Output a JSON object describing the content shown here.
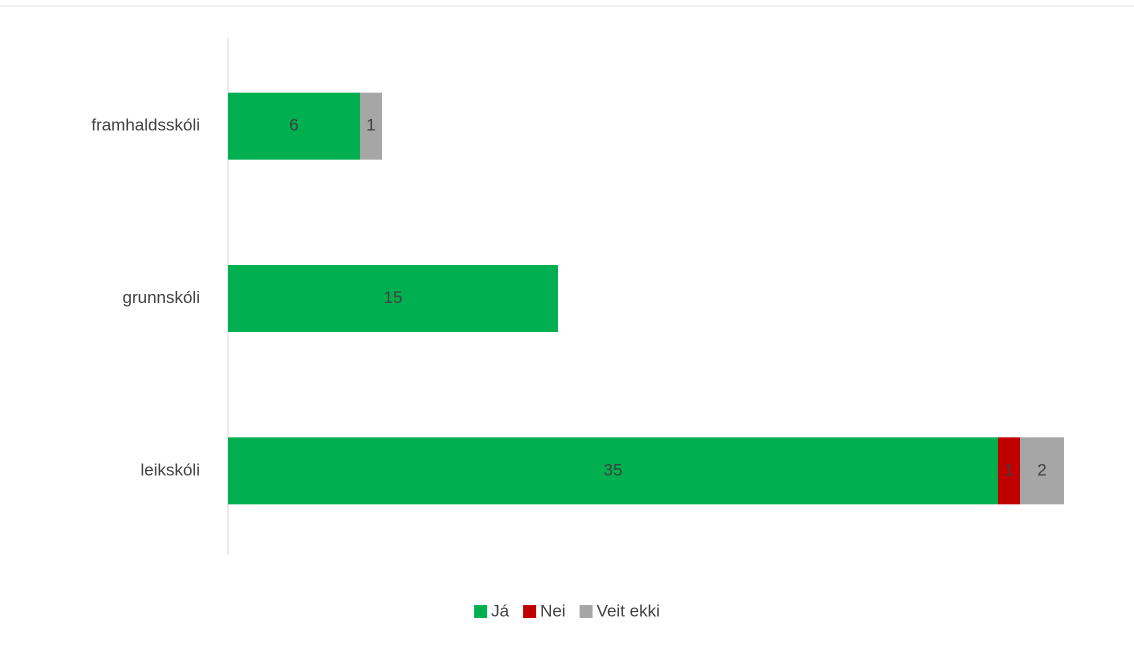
{
  "chart_data": {
    "type": "stacked-bar-horizontal",
    "categories": [
      "framhaldsskóli",
      "grunnskóli",
      "leikskóli"
    ],
    "series": [
      {
        "name": "Já",
        "color": "#00b050",
        "values": [
          6,
          15,
          35
        ]
      },
      {
        "name": "Nei",
        "color": "#c00000",
        "values": [
          null,
          null,
          1
        ]
      },
      {
        "name": "Veit ekki",
        "color": "#a6a6a6",
        "values": [
          1,
          null,
          2
        ]
      }
    ]
  }
}
